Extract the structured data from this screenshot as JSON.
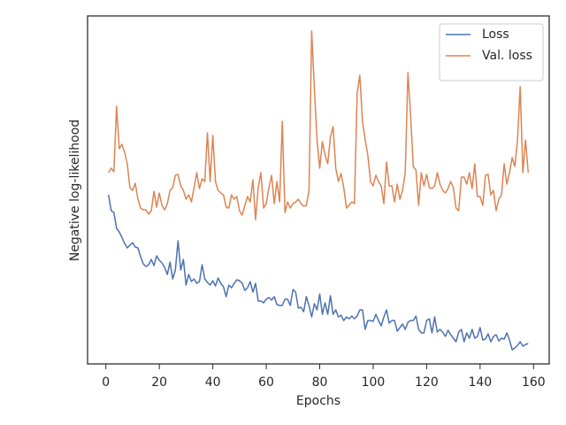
{
  "chart_data": {
    "type": "line",
    "xlabel": "Epochs",
    "ylabel": "Negative log-likelihood",
    "x": [
      1,
      2,
      3,
      4,
      5,
      6,
      7,
      8,
      9,
      10,
      11,
      12,
      13,
      14,
      15,
      16,
      17,
      18,
      19,
      20,
      21,
      22,
      23,
      24,
      25,
      26,
      27,
      28,
      29,
      30,
      31,
      32,
      33,
      34,
      35,
      36,
      37,
      38,
      39,
      40,
      41,
      42,
      43,
      44,
      45,
      46,
      47,
      48,
      49,
      50,
      51,
      52,
      53,
      54,
      55,
      56,
      57,
      58,
      59,
      60,
      61,
      62,
      63,
      64,
      65,
      66,
      67,
      68,
      69,
      70,
      71,
      72,
      73,
      74,
      75,
      76,
      77,
      78,
      79,
      80,
      81,
      82,
      83,
      84,
      85,
      86,
      87,
      88,
      89,
      90,
      91,
      92,
      93,
      94,
      95,
      96,
      97,
      98,
      99,
      100,
      101,
      102,
      103,
      104,
      105,
      106,
      107,
      108,
      109,
      110,
      111,
      112,
      113,
      114,
      115,
      116,
      117,
      118,
      119,
      120,
      121,
      122,
      123,
      124,
      125,
      126,
      127,
      128,
      129,
      130,
      131,
      132,
      133,
      134,
      135,
      136,
      137,
      138,
      139,
      140,
      141,
      142,
      143,
      144,
      145,
      146,
      147,
      148,
      149,
      150,
      151,
      152,
      153,
      154,
      155,
      156,
      157,
      158
    ],
    "series": [
      {
        "name": "Loss",
        "color": "#4c72b0",
        "values": [
          191,
          173,
          171,
          153,
          149,
          143,
          136,
          131,
          134,
          137,
          132,
          131,
          121,
          113,
          110,
          112,
          118,
          111,
          122,
          117,
          114,
          109,
          101,
          115,
          96,
          106,
          139,
          106,
          118,
          89,
          101,
          93,
          96,
          91,
          93,
          112,
          96,
          92,
          89,
          94,
          88,
          97,
          91,
          87,
          76,
          89,
          86,
          91,
          95,
          94,
          91,
          83,
          86,
          93,
          81,
          91,
          71,
          71,
          69,
          73,
          75,
          72,
          76,
          67,
          66,
          66,
          73,
          73,
          66,
          84,
          81,
          63,
          64,
          59,
          76,
          66,
          53,
          68,
          61,
          79,
          56,
          69,
          56,
          77,
          56,
          61,
          53,
          55,
          49,
          53,
          51,
          54,
          51,
          54,
          61,
          61,
          39,
          49,
          49,
          48,
          56,
          49,
          43,
          53,
          61,
          46,
          49,
          49,
          37,
          41,
          45,
          39,
          47,
          49,
          49,
          54,
          39,
          35,
          35,
          49,
          51,
          35,
          53,
          36,
          39,
          36,
          31,
          38,
          33,
          29,
          25,
          36,
          39,
          25,
          35,
          29,
          39,
          29,
          31,
          41,
          27,
          28,
          34,
          25,
          31,
          33,
          26,
          29,
          28,
          35,
          27,
          16,
          18,
          21,
          25,
          20,
          22,
          23
        ]
      },
      {
        "name": "Val. loss",
        "color": "#dd8452",
        "values": [
          216,
          221,
          217,
          291,
          243,
          248,
          239,
          226,
          199,
          196,
          204,
          186,
          176,
          174,
          174,
          169,
          173,
          195,
          177,
          193,
          179,
          174,
          181,
          196,
          199,
          213,
          214,
          201,
          196,
          186,
          191,
          183,
          199,
          216,
          198,
          209,
          206,
          261,
          206,
          258,
          206,
          196,
          193,
          191,
          177,
          176,
          191,
          186,
          189,
          173,
          168,
          179,
          189,
          183,
          208,
          163,
          199,
          216,
          176,
          181,
          199,
          213,
          181,
          206,
          183,
          274,
          171,
          183,
          176,
          181,
          183,
          186,
          181,
          178,
          179,
          196,
          376,
          311,
          253,
          221,
          251,
          236,
          226,
          256,
          268,
          221,
          206,
          215,
          199,
          176,
          179,
          183,
          181,
          306,
          326,
          274,
          253,
          236,
          206,
          201,
          213,
          206,
          201,
          181,
          228,
          201,
          201,
          183,
          203,
          186,
          196,
          216,
          329,
          281,
          223,
          219,
          179,
          216,
          201,
          214,
          199,
          198,
          201,
          216,
          203,
          196,
          193,
          198,
          206,
          199,
          176,
          173,
          211,
          211,
          203,
          216,
          198,
          226,
          189,
          189,
          179,
          213,
          214,
          191,
          196,
          173,
          186,
          191,
          226,
          203,
          216,
          233,
          223,
          253,
          313,
          216,
          253,
          216
        ]
      }
    ],
    "xlim": [
      -6.85,
      165.85
    ],
    "xticks": [
      0,
      20,
      40,
      60,
      80,
      100,
      120,
      140,
      160
    ],
    "ylim": [
      0,
      393
    ],
    "legend": "upper right"
  }
}
